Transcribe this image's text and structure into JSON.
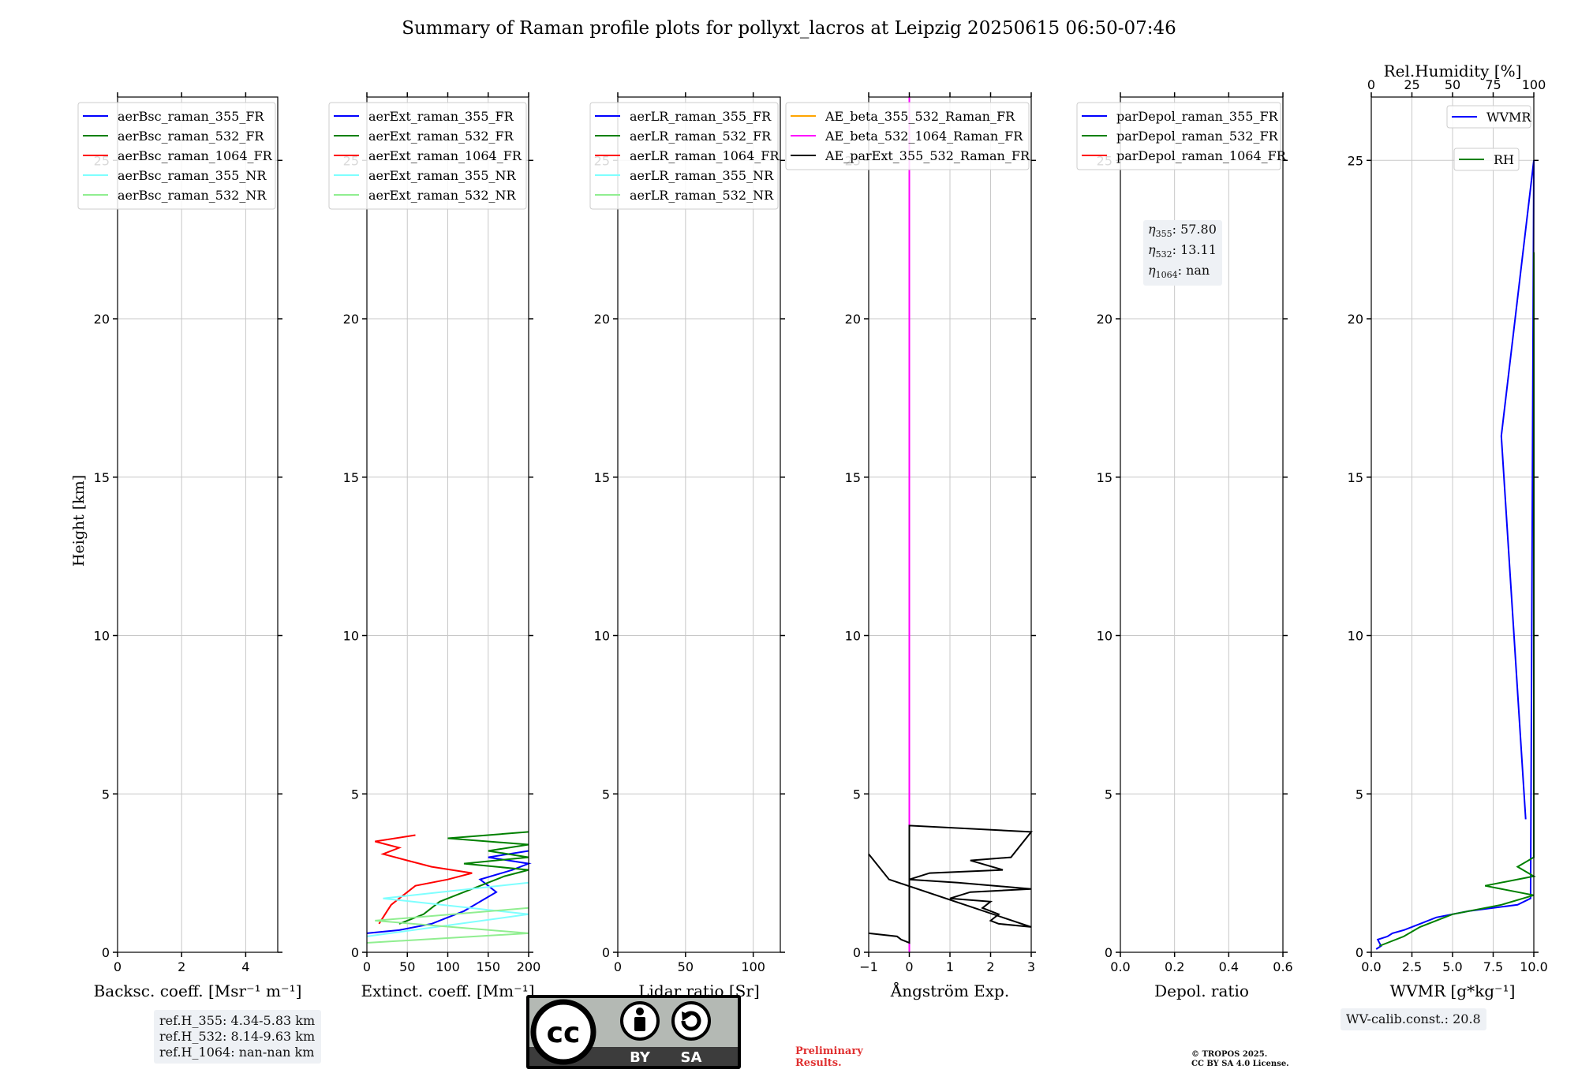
{
  "title": "Summary of Raman profile plots for pollyxt_lacros at Leipzig 20250615 06:50-07:46",
  "ylabel": "Height [km]",
  "ref_heights": [
    "ref.H_355: 4.34-5.83 km",
    "ref.H_532: 8.14-9.63 km",
    "ref.H_1064: nan-nan km"
  ],
  "eta": {
    "l355": ": 57.80",
    "l532": ": 13.11",
    "l1064": ": nan"
  },
  "wv_calib": "WV-calib.const.: 20.8",
  "preliminary": [
    "Preliminary",
    "Results."
  ],
  "copyright": [
    "© TROPOS 2025.",
    "CC BY SA 4.0 License."
  ],
  "license_logo": {
    "cc": "cc",
    "by": "BY",
    "sa": "SA"
  },
  "colors": {
    "c355": "#0000ff",
    "c532": "#008000",
    "c1064": "#ff0000",
    "nr355": "#7fffff",
    "nr532": "#90ee90",
    "ae1": "#ffa500",
    "ae2": "#ff00ff",
    "ae3": "#000000"
  },
  "chart_data": [
    {
      "type": "line",
      "name": "backscatter",
      "xlabel": "Backsc. coeff. [Msr⁻¹ m⁻¹]",
      "xlim": [
        0,
        5
      ],
      "xticks": [
        0,
        2,
        4
      ],
      "ylim": [
        0,
        27
      ],
      "yticks": [
        0,
        5,
        10,
        15,
        20,
        25
      ],
      "grid": true,
      "legend": "top-right",
      "series": [
        {
          "name": "aerBsc_raman_355_FR",
          "color": "#0000ff",
          "points": []
        },
        {
          "name": "aerBsc_raman_532_FR",
          "color": "#008000",
          "points": []
        },
        {
          "name": "aerBsc_raman_1064_FR",
          "color": "#ff0000",
          "points": []
        },
        {
          "name": "aerBsc_raman_355_NR",
          "color": "#7fffff",
          "points": []
        },
        {
          "name": "aerBsc_raman_532_NR",
          "color": "#90ee90",
          "points": []
        }
      ]
    },
    {
      "type": "line",
      "name": "extinction",
      "xlabel": "Extinct. coeff. [Mm⁻¹]",
      "xlim": [
        0,
        200
      ],
      "xticks": [
        0,
        50,
        100,
        150,
        200
      ],
      "ylim": [
        0,
        27
      ],
      "yticks": [
        0,
        5,
        10,
        15,
        20,
        25
      ],
      "grid": true,
      "legend": "top-right",
      "series": [
        {
          "name": "aerExt_raman_355_FR",
          "color": "#0000ff",
          "points": [
            [
              0,
              0.6
            ],
            [
              40,
              0.7
            ],
            [
              80,
              0.9
            ],
            [
              100,
              1.1
            ],
            [
              120,
              1.3
            ],
            [
              140,
              1.6
            ],
            [
              160,
              1.9
            ],
            [
              150,
              2.1
            ],
            [
              140,
              2.3
            ],
            [
              180,
              2.6
            ],
            [
              200,
              2.8
            ],
            [
              150,
              3.0
            ],
            [
              200,
              3.2
            ]
          ]
        },
        {
          "name": "aerExt_raman_532_FR",
          "color": "#008000",
          "points": [
            [
              40,
              0.9
            ],
            [
              50,
              1.0
            ],
            [
              70,
              1.2
            ],
            [
              80,
              1.4
            ],
            [
              90,
              1.6
            ],
            [
              110,
              1.8
            ],
            [
              130,
              2.0
            ],
            [
              150,
              2.2
            ],
            [
              170,
              2.4
            ],
            [
              200,
              2.6
            ],
            [
              120,
              2.8
            ],
            [
              200,
              3.0
            ],
            [
              150,
              3.2
            ],
            [
              200,
              3.4
            ],
            [
              100,
              3.6
            ],
            [
              200,
              3.8
            ]
          ]
        },
        {
          "name": "aerExt_raman_1064_FR",
          "color": "#ff0000",
          "points": [
            [
              15,
              0.9
            ],
            [
              20,
              1.1
            ],
            [
              25,
              1.3
            ],
            [
              30,
              1.5
            ],
            [
              40,
              1.7
            ],
            [
              50,
              1.9
            ],
            [
              60,
              2.1
            ],
            [
              100,
              2.3
            ],
            [
              130,
              2.5
            ],
            [
              80,
              2.7
            ],
            [
              50,
              2.9
            ],
            [
              20,
              3.1
            ],
            [
              40,
              3.3
            ],
            [
              10,
              3.5
            ],
            [
              60,
              3.7
            ]
          ]
        },
        {
          "name": "aerExt_raman_355_NR",
          "color": "#7fffff",
          "points": [
            [
              0,
              0.5
            ],
            [
              200,
              1.2
            ],
            [
              20,
              1.7
            ],
            [
              200,
              2.2
            ]
          ]
        },
        {
          "name": "aerExt_raman_532_NR",
          "color": "#90ee90",
          "points": [
            [
              0,
              0.3
            ],
            [
              200,
              0.6
            ],
            [
              10,
              1.0
            ],
            [
              200,
              1.4
            ]
          ]
        }
      ]
    },
    {
      "type": "line",
      "name": "lidar_ratio",
      "xlabel": "Lidar ratio [Sr]",
      "xlim": [
        0,
        120
      ],
      "xticks": [
        0,
        50,
        100
      ],
      "ylim": [
        0,
        27
      ],
      "yticks": [
        0,
        5,
        10,
        15,
        20,
        25
      ],
      "grid": true,
      "legend": "top-right",
      "series": [
        {
          "name": "aerLR_raman_355_FR",
          "color": "#0000ff",
          "points": []
        },
        {
          "name": "aerLR_raman_532_FR",
          "color": "#008000",
          "points": []
        },
        {
          "name": "aerLR_raman_1064_FR",
          "color": "#ff0000",
          "points": []
        },
        {
          "name": "aerLR_raman_355_NR",
          "color": "#7fffff",
          "points": []
        },
        {
          "name": "aerLR_raman_532_NR",
          "color": "#90ee90",
          "points": []
        }
      ]
    },
    {
      "type": "line",
      "name": "angstrom",
      "xlabel": "Ångström Exp.",
      "xlim": [
        -1,
        3
      ],
      "xticks": [
        -1,
        0,
        1,
        2,
        3
      ],
      "ylim": [
        0,
        27
      ],
      "yticks": [
        0,
        5,
        10,
        15,
        20,
        25
      ],
      "grid": true,
      "legend": "top-right",
      "series": [
        {
          "name": "AE_beta_355_532_Raman_FR",
          "color": "#ffa500",
          "points": []
        },
        {
          "name": "AE_beta_532_1064_Raman_FR",
          "color": "#ff00ff",
          "points": [
            [
              0,
              0
            ],
            [
              0,
              27
            ]
          ]
        },
        {
          "name": "AE_parExt_355_532_Raman_FR",
          "color": "#000000",
          "points": [
            [
              -1,
              0.6
            ],
            [
              -0.3,
              0.5
            ],
            [
              -0.2,
              0.4
            ],
            [
              0,
              0.3
            ],
            [
              0,
              4.0
            ],
            [
              3,
              3.8
            ],
            [
              3,
              3.8
            ],
            [
              2.5,
              3.0
            ],
            [
              1.5,
              2.9
            ],
            [
              2.3,
              2.6
            ],
            [
              0.5,
              2.5
            ],
            [
              0,
              2.3
            ],
            [
              1.2,
              2.2
            ],
            [
              3,
              2.0
            ],
            [
              1.5,
              1.9
            ],
            [
              1.0,
              1.7
            ],
            [
              2.0,
              1.6
            ],
            [
              1.8,
              1.4
            ],
            [
              2.2,
              1.2
            ],
            [
              2.0,
              1.0
            ],
            [
              2.2,
              0.9
            ],
            [
              3,
              0.8
            ],
            [
              -0.5,
              2.3
            ],
            [
              -1,
              3.1
            ]
          ]
        }
      ]
    },
    {
      "type": "line",
      "name": "depolarization",
      "xlabel": "Depol. ratio",
      "xlim": [
        0,
        0.6
      ],
      "xticks": [
        0.0,
        0.2,
        0.4,
        0.6
      ],
      "ylim": [
        0,
        27
      ],
      "yticks": [
        0,
        5,
        10,
        15,
        20,
        25
      ],
      "grid": true,
      "legend": "top-right",
      "series": [
        {
          "name": "parDepol_raman_355_FR",
          "color": "#0000ff",
          "points": []
        },
        {
          "name": "parDepol_raman_532_FR",
          "color": "#008000",
          "points": []
        },
        {
          "name": "parDepol_raman_1064_FR",
          "color": "#ff0000",
          "points": []
        }
      ]
    },
    {
      "type": "line",
      "name": "water_vapor",
      "xlabel": "WVMR [g*kg⁻¹]",
      "x2label": "Rel.Humidity [%]",
      "xlim": [
        0,
        10
      ],
      "xticks": [
        0.0,
        2.5,
        5.0,
        7.5,
        10.0
      ],
      "x2lim": [
        0,
        100
      ],
      "x2ticks": [
        0,
        25,
        50,
        75,
        100
      ],
      "ylim": [
        0,
        27
      ],
      "yticks": [
        0,
        5,
        10,
        15,
        20,
        25
      ],
      "grid": true,
      "legend": "top-right",
      "series": [
        {
          "name": "WVMR",
          "color": "#0000ff",
          "points": [
            [
              0.3,
              0.1
            ],
            [
              0.6,
              0.2
            ],
            [
              0.4,
              0.4
            ],
            [
              1.0,
              0.5
            ],
            [
              1.3,
              0.6
            ],
            [
              2.0,
              0.7
            ],
            [
              3.0,
              0.9
            ],
            [
              4.0,
              1.1
            ],
            [
              6.0,
              1.3
            ],
            [
              9.0,
              1.5
            ],
            [
              9.8,
              1.7
            ],
            [
              10,
              25.0
            ],
            [
              8,
              16.3
            ],
            [
              9.5,
              4.2
            ]
          ]
        },
        {
          "name": "RH",
          "color": "#008000",
          "points": [
            [
              5,
              0.2
            ],
            [
              20,
              0.5
            ],
            [
              30,
              0.8
            ],
            [
              50,
              1.2
            ],
            [
              80,
              1.5
            ],
            [
              100,
              1.8
            ],
            [
              70,
              2.1
            ],
            [
              100,
              2.4
            ],
            [
              90,
              2.7
            ],
            [
              100,
              3.0
            ],
            [
              100,
              3.5
            ],
            [
              100,
              4.5
            ],
            [
              100,
              15.4
            ],
            [
              100,
              22.1
            ]
          ]
        }
      ]
    }
  ]
}
